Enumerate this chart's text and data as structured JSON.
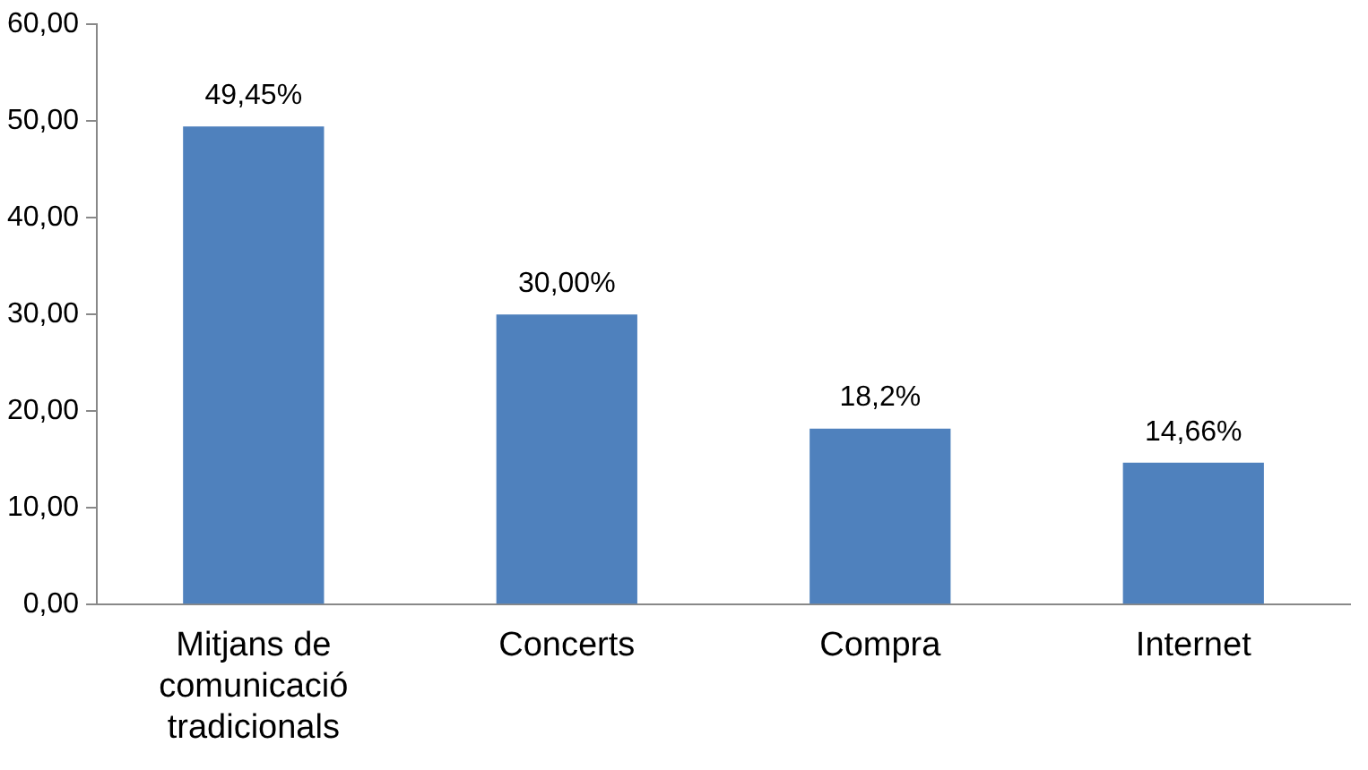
{
  "chart_data": {
    "type": "bar",
    "categories": [
      "Mitjans de comunicació tradicionals",
      "Concerts",
      "Compra",
      "Internet"
    ],
    "values": [
      49.45,
      30.0,
      18.2,
      14.66
    ],
    "value_labels": [
      "49,45%",
      "30,00%",
      "18,2%",
      "14,66%"
    ],
    "color": "#4f81bd",
    "ylim": [
      0,
      60
    ],
    "yticks": [
      {
        "value": 0,
        "label": "0,00"
      },
      {
        "value": 10,
        "label": "10,00"
      },
      {
        "value": 20,
        "label": "20,00"
      },
      {
        "value": 30,
        "label": "30,00"
      },
      {
        "value": 40,
        "label": "40,00"
      },
      {
        "value": 50,
        "label": "50,00"
      },
      {
        "value": 60,
        "label": "60,00"
      }
    ],
    "grid": false,
    "legend": false
  }
}
